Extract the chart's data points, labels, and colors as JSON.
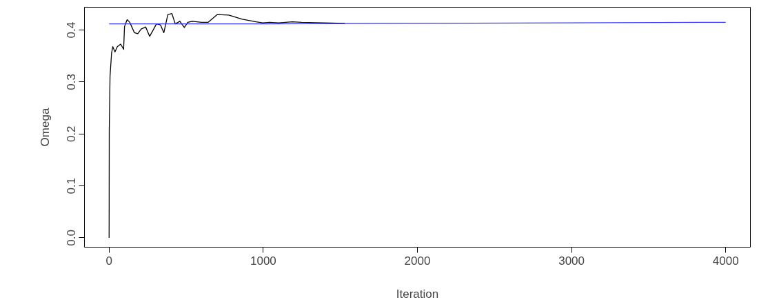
{
  "chart_data": {
    "type": "line",
    "xlabel": "Iteration",
    "ylabel": "Omega",
    "xlim": [
      -160,
      4160
    ],
    "ylim": [
      -0.018,
      0.444
    ],
    "xticks": [
      0,
      1000,
      2000,
      3000,
      4000
    ],
    "yticks": [
      {
        "value": 0,
        "label": "0.0"
      },
      0.1,
      0.2,
      0.3,
      0.4
    ],
    "grid": false,
    "series": [
      {
        "color": "#000000",
        "x": [
          0,
          1,
          6,
          16,
          24,
          38,
          53,
          75,
          94,
          100,
          117,
          134,
          149,
          164,
          186,
          208,
          237,
          263,
          282,
          307,
          333,
          355,
          381,
          407,
          429,
          459,
          488,
          510,
          540,
          599,
          643,
          702,
          776,
          820,
          864,
          953,
          997,
          1041,
          1100,
          1189,
          1248,
          1530
        ],
        "values": [
          0.0,
          0.207,
          0.311,
          0.356,
          0.368,
          0.358,
          0.368,
          0.373,
          0.363,
          0.407,
          0.42,
          0.415,
          0.405,
          0.395,
          0.393,
          0.402,
          0.406,
          0.388,
          0.398,
          0.412,
          0.41,
          0.395,
          0.43,
          0.432,
          0.412,
          0.417,
          0.405,
          0.415,
          0.417,
          0.415,
          0.415,
          0.43,
          0.429,
          0.425,
          0.421,
          0.416,
          0.414,
          0.415,
          0.414,
          0.416,
          0.415,
          0.413
        ]
      },
      {
        "color": "#3333ff",
        "x": [
          0,
          1000,
          2000,
          3000,
          4000
        ],
        "values": [
          0.412,
          0.412,
          0.413,
          0.414,
          0.415
        ]
      }
    ]
  }
}
